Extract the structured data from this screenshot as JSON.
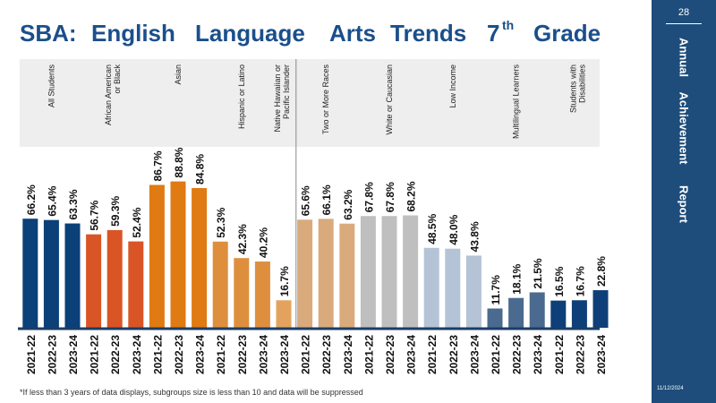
{
  "title_words": [
    "SBA:",
    "English",
    "Language",
    "Arts",
    "Trends",
    "7",
    "th",
    "Grade"
  ],
  "footnote": "*If less than 3 years of data displays, subgroups size is less than 10 and data will be suppressed",
  "sidebar": {
    "page_number": "28",
    "words": [
      "Annual",
      "Achievement",
      "Report"
    ],
    "date": "11/12/2024"
  },
  "colors": {
    "All Students": "#0b4078",
    "African American or Black": "#d95526",
    "Asian": "#e07a12",
    "Hispanic or Latino": "#de8f3e",
    "Native Hawaiian or Pacific Islander": "#e3a35e",
    "Two or More Races": "#d9aa7c",
    "White or Caucasian": "#bfbfbf",
    "Low Income": "#b4c3d5",
    "Multilingual Learners": "#4a6b8f",
    "Students with Disabilities": "#0e3f78",
    "axis": "#1b3d66",
    "group_band": "#eeeeee",
    "divider": "#888888"
  },
  "chart_data": {
    "type": "bar",
    "ylim": [
      0,
      100
    ],
    "value_suffix": "%",
    "groups": [
      {
        "name": "All Students",
        "categories": [
          "2021-22",
          "2022-23",
          "2023-24"
        ],
        "values": [
          66.2,
          65.4,
          63.3
        ],
        "labels": [
          "66.2%",
          "65.4%",
          "63.3%"
        ]
      },
      {
        "name": "African American or Black",
        "categories": [
          "2021-22",
          "2022-23",
          "2023-24"
        ],
        "values": [
          56.7,
          59.3,
          52.4
        ],
        "labels": [
          "56.7%",
          "59.3%",
          "52.4%"
        ]
      },
      {
        "name": "Asian",
        "categories": [
          "2021-22",
          "2022-23",
          "2023-24"
        ],
        "values": [
          86.7,
          88.8,
          84.8
        ],
        "labels": [
          "86.7%",
          "88.8%",
          "84.8%"
        ]
      },
      {
        "name": "Hispanic or Latino",
        "categories": [
          "2021-22",
          "2022-23",
          "2023-24"
        ],
        "values": [
          52.3,
          42.3,
          40.2
        ],
        "labels": [
          "52.3%",
          "42.3%",
          "40.2%"
        ]
      },
      {
        "name": "Native Hawaiian or Pacific Islander",
        "categories": [
          "2023-24"
        ],
        "values": [
          16.7
        ],
        "labels": [
          "16.7%"
        ]
      },
      {
        "name": "Two or More Races",
        "categories": [
          "2021-22",
          "2022-23",
          "2023-24"
        ],
        "values": [
          65.6,
          66.1,
          63.2
        ],
        "labels": [
          "65.6%",
          "66.1%",
          "63.2%"
        ]
      },
      {
        "name": "White or Caucasian",
        "categories": [
          "2021-22",
          "2022-23",
          "2023-24"
        ],
        "values": [
          67.8,
          67.8,
          68.2
        ],
        "labels": [
          "67.8%",
          "67.8%",
          "68.2%"
        ]
      },
      {
        "name": "Low Income",
        "categories": [
          "2021-22",
          "2022-23",
          "2023-24"
        ],
        "values": [
          48.5,
          48.0,
          43.8
        ],
        "labels": [
          "48.5%",
          "48.0%",
          "43.8%"
        ]
      },
      {
        "name": "Multilingual Learners",
        "categories": [
          "2021-22",
          "2022-23",
          "2023-24"
        ],
        "values": [
          11.7,
          18.1,
          21.5
        ],
        "labels": [
          "11.7%",
          "18.1%",
          "21.5%"
        ]
      },
      {
        "name": "Students with Disabilities",
        "categories": [
          "2021-22",
          "2022-23",
          "2023-24"
        ],
        "values": [
          16.5,
          16.7,
          22.8
        ],
        "labels": [
          "16.5%",
          "16.7%",
          "22.8%"
        ]
      }
    ]
  }
}
